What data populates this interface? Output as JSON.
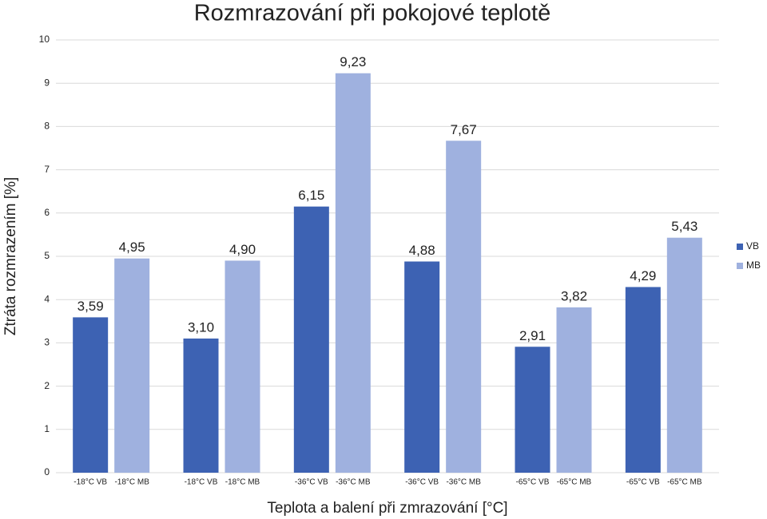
{
  "chart_data": {
    "type": "bar",
    "title": "Rozmrazování při pokojové teplotě",
    "x_label": "Teplota a balení při zmrazování [°C]",
    "y_label": "Ztráta rozmrazením [%]",
    "categories": [
      "-18°C VB",
      "-18°C MB",
      "-18°C VB",
      "-18°C MB",
      "-36°C VB",
      "-36°C MB",
      "-36°C VB",
      "-36°C MB",
      "-65°C VB",
      "-65°C MB",
      "-65°C VB",
      "-65°C MB"
    ],
    "series": [
      {
        "name": "VB",
        "color": "#3d62b3",
        "values": [
          3.59,
          null,
          3.1,
          null,
          6.15,
          null,
          4.88,
          null,
          2.91,
          null,
          4.29,
          null
        ],
        "value_labels": [
          "3,59",
          null,
          "3,10",
          null,
          "6,15",
          null,
          "4,88",
          null,
          "2,91",
          null,
          "4,29",
          null
        ]
      },
      {
        "name": "MB",
        "color": "#9fb1df",
        "values": [
          null,
          4.95,
          null,
          4.9,
          null,
          9.23,
          null,
          7.67,
          null,
          3.82,
          null,
          5.43
        ],
        "value_labels": [
          null,
          "4,95",
          null,
          "4,90",
          null,
          "9,23",
          null,
          "7,67",
          null,
          "3,82",
          null,
          "5,43"
        ]
      }
    ],
    "ylim": [
      0,
      10
    ],
    "yticks": [
      0,
      1,
      2,
      3,
      4,
      5,
      6,
      7,
      8,
      9,
      10
    ],
    "grid": true,
    "legend": "right"
  }
}
